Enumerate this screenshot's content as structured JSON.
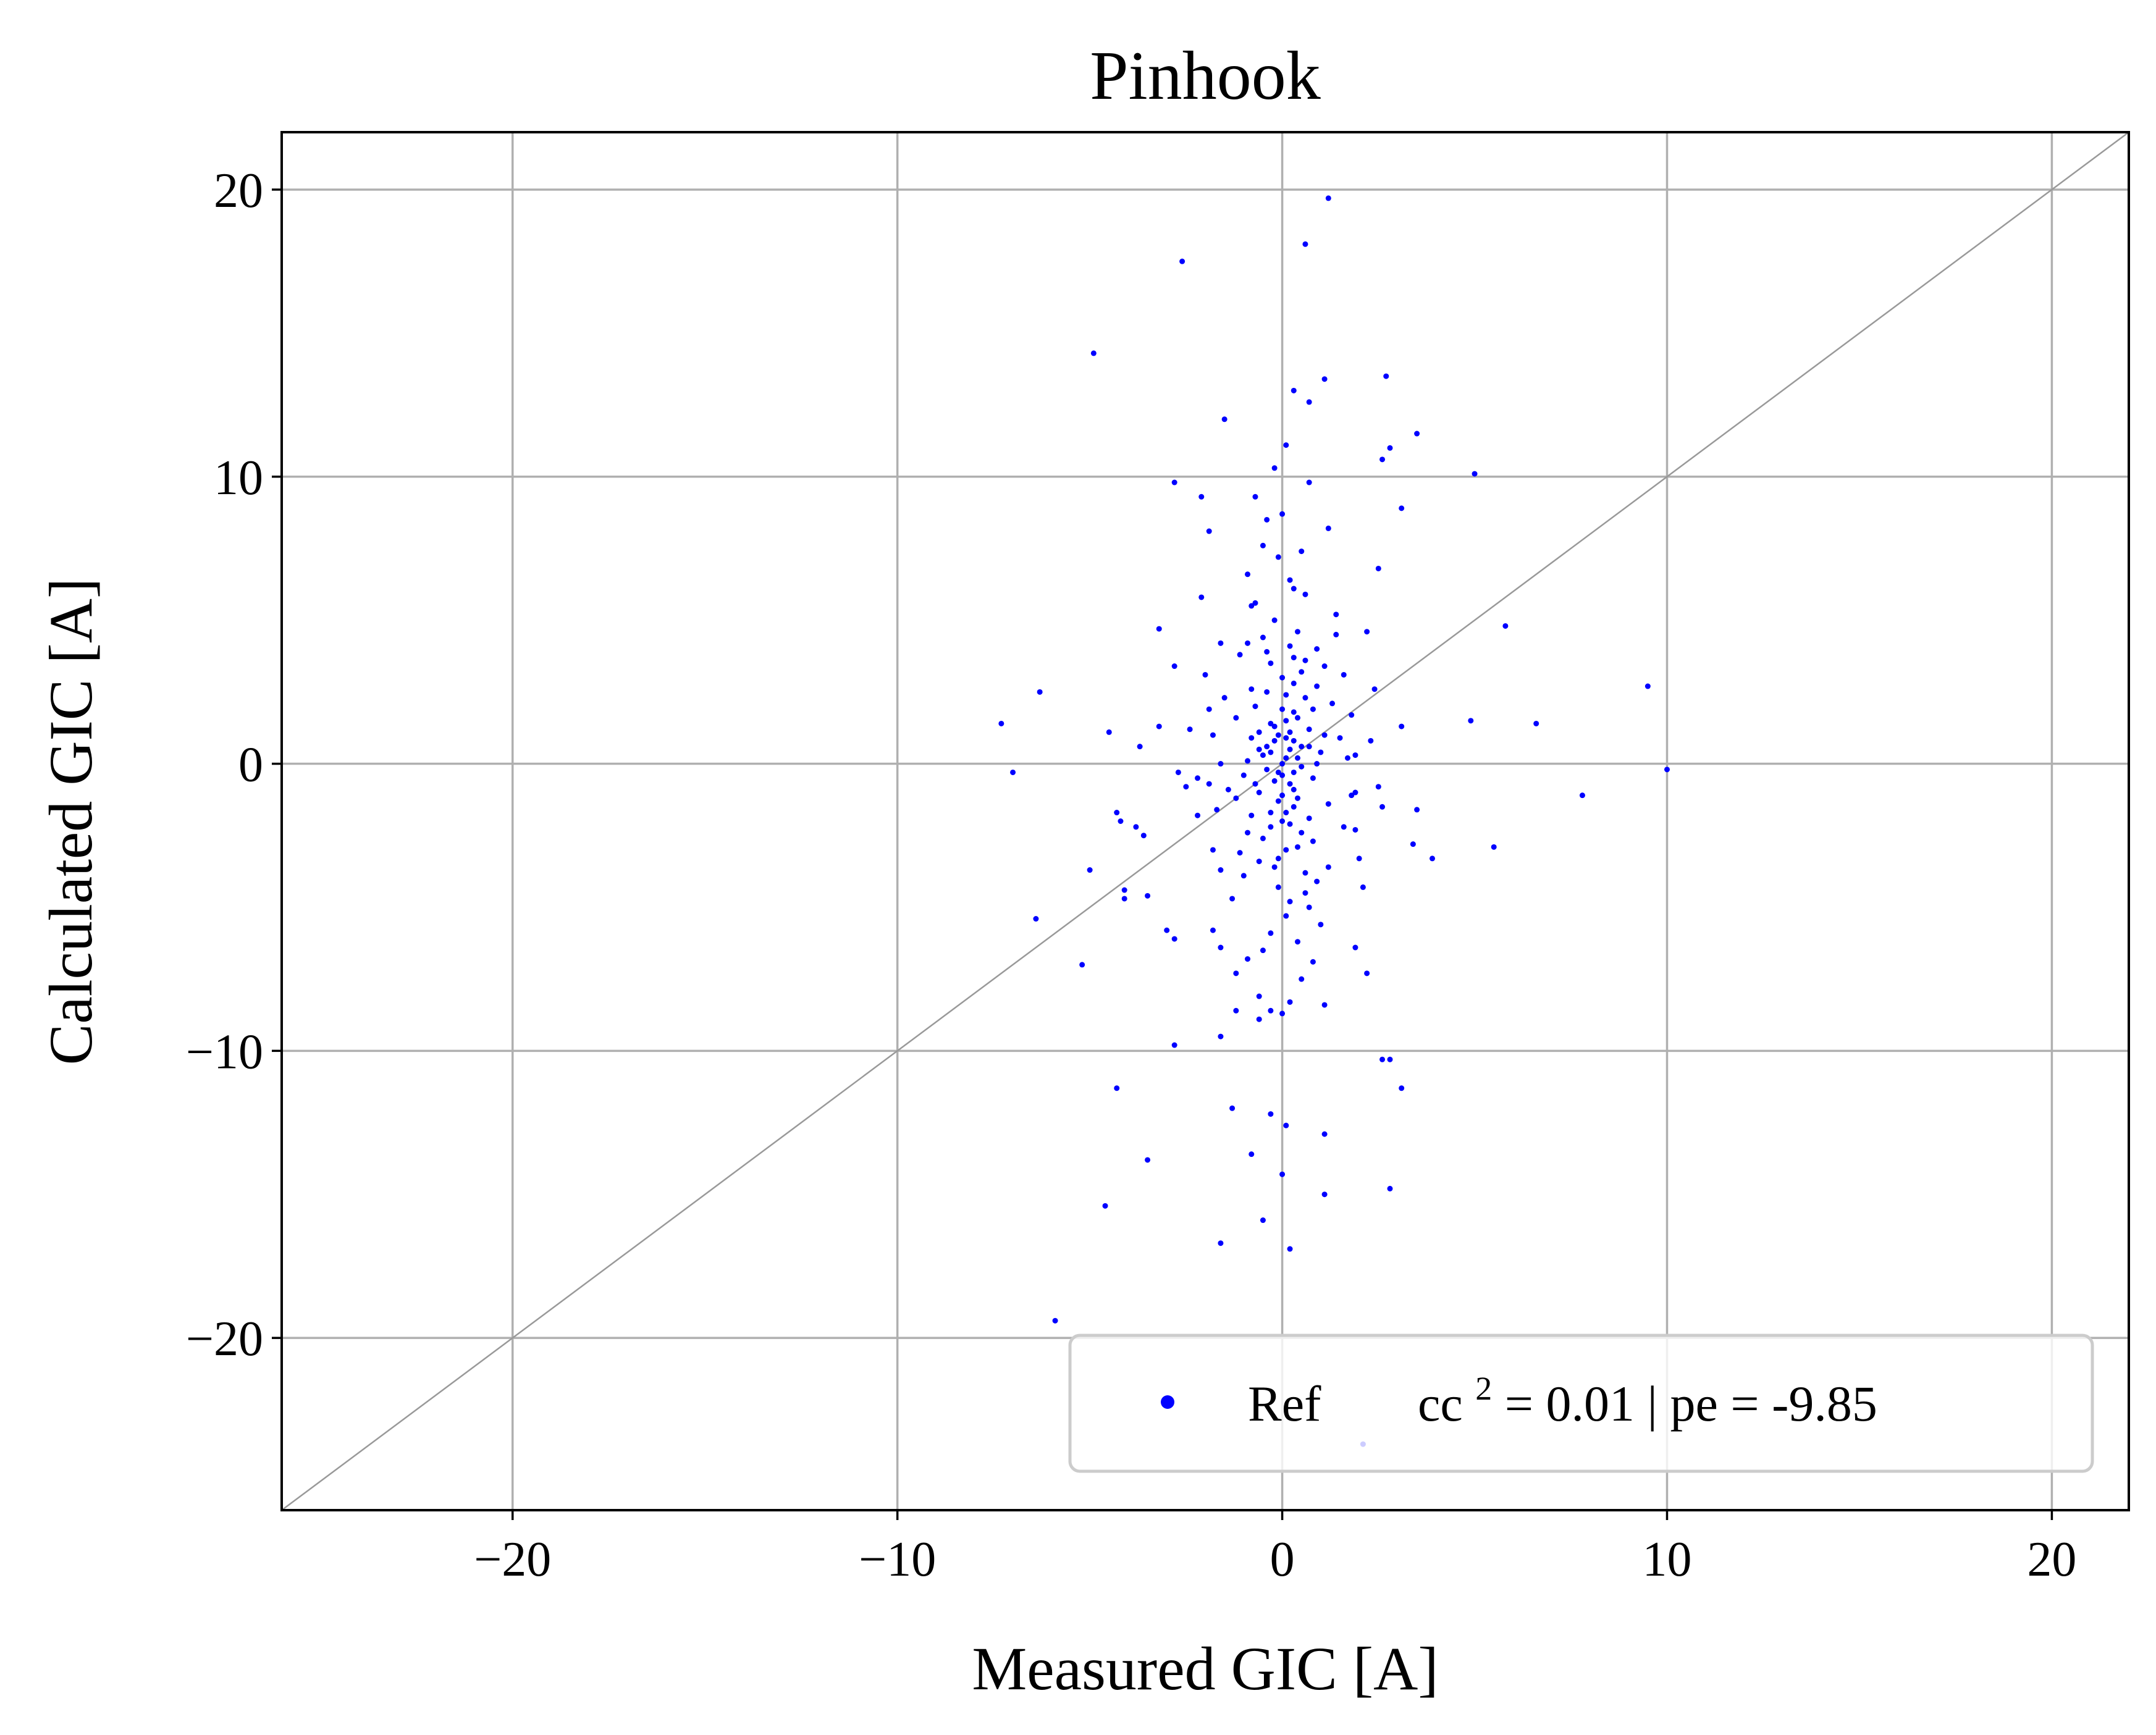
{
  "chart_data": {
    "type": "scatter",
    "title": "Pinhook",
    "xlabel": "Measured GIC [A]",
    "ylabel": "Calculated GIC [A]",
    "xlim": [
      -26,
      22
    ],
    "ylim": [
      -26,
      22
    ],
    "xticks": [
      -20,
      -10,
      0,
      10,
      20
    ],
    "yticks": [
      -20,
      -10,
      0,
      10,
      20
    ],
    "xtick_labels": [
      "−20",
      "−10",
      "0",
      "10",
      "20"
    ],
    "ytick_labels": [
      "−20",
      "−10",
      "0",
      "10",
      "20"
    ],
    "grid": true,
    "reference_line": {
      "type": "identity",
      "color": "#999999"
    },
    "legend": {
      "placement": "lower-right",
      "marker_label": "Ref",
      "stats_prefix": "cc",
      "stats_exponent": "2",
      "stats_suffix": " = 0.01 | pe = -9.85"
    },
    "series": [
      {
        "name": "Ref",
        "color": "#0000ff",
        "points": [
          [
            1.2,
            19.7
          ],
          [
            0.6,
            18.1
          ],
          [
            -2.6,
            17.5
          ],
          [
            -4.9,
            14.3
          ],
          [
            2.7,
            13.5
          ],
          [
            1.1,
            13.4
          ],
          [
            0.3,
            13.0
          ],
          [
            0.7,
            12.6
          ],
          [
            -1.5,
            12.0
          ],
          [
            3.5,
            11.5
          ],
          [
            0.1,
            11.1
          ],
          [
            2.8,
            11.0
          ],
          [
            2.6,
            10.6
          ],
          [
            -0.2,
            10.3
          ],
          [
            5.0,
            10.1
          ],
          [
            -2.8,
            9.8
          ],
          [
            0.7,
            9.8
          ],
          [
            -0.7,
            9.3
          ],
          [
            -2.1,
            9.3
          ],
          [
            3.1,
            8.9
          ],
          [
            0.0,
            8.7
          ],
          [
            -0.4,
            8.5
          ],
          [
            1.2,
            8.2
          ],
          [
            -1.9,
            8.1
          ],
          [
            -0.5,
            7.6
          ],
          [
            0.5,
            7.4
          ],
          [
            -0.1,
            7.2
          ],
          [
            2.5,
            6.8
          ],
          [
            -0.9,
            6.6
          ],
          [
            0.3,
            6.1
          ],
          [
            -2.1,
            5.8
          ],
          [
            -0.8,
            5.5
          ],
          [
            1.4,
            5.2
          ],
          [
            -3.2,
            4.7
          ],
          [
            5.8,
            4.8
          ],
          [
            2.2,
            4.6
          ],
          [
            -1.6,
            4.2
          ],
          [
            0.9,
            4.0
          ],
          [
            -2.8,
            3.4
          ],
          [
            1.6,
            3.1
          ],
          [
            -6.3,
            2.5
          ],
          [
            9.5,
            2.7
          ],
          [
            2.4,
            2.6
          ],
          [
            -4.5,
            1.1
          ],
          [
            -7.3,
            1.4
          ],
          [
            6.6,
            1.4
          ],
          [
            4.9,
            1.5
          ],
          [
            -3.2,
            1.3
          ],
          [
            3.1,
            1.3
          ],
          [
            -1.8,
            1.0
          ],
          [
            -3.7,
            0.6
          ],
          [
            1.9,
            0.3
          ],
          [
            -7.0,
            -0.3
          ],
          [
            -2.7,
            -0.3
          ],
          [
            10.0,
            -0.2
          ],
          [
            -2.5,
            -0.8
          ],
          [
            -1.9,
            -0.7
          ],
          [
            1.8,
            -1.1
          ],
          [
            7.8,
            -1.1
          ],
          [
            3.5,
            -1.6
          ],
          [
            2.6,
            -1.5
          ],
          [
            -4.3,
            -1.7
          ],
          [
            -2.2,
            -1.8
          ],
          [
            -4.2,
            -2.0
          ],
          [
            -3.8,
            -2.2
          ],
          [
            -3.6,
            -2.5
          ],
          [
            1.9,
            -2.3
          ],
          [
            5.5,
            -2.9
          ],
          [
            3.4,
            -2.8
          ],
          [
            -1.8,
            -3.0
          ],
          [
            3.9,
            -3.3
          ],
          [
            -1.6,
            -3.7
          ],
          [
            -5.0,
            -3.7
          ],
          [
            -4.1,
            -4.4
          ],
          [
            -4.1,
            -4.7
          ],
          [
            -3.5,
            -4.6
          ],
          [
            2.1,
            -4.3
          ],
          [
            -6.4,
            -5.4
          ],
          [
            -1.8,
            -5.8
          ],
          [
            -3.0,
            -5.8
          ],
          [
            -2.8,
            -6.1
          ],
          [
            1.9,
            -6.4
          ],
          [
            -1.6,
            -6.4
          ],
          [
            -5.2,
            -7.0
          ],
          [
            -0.9,
            -6.8
          ],
          [
            0.8,
            -6.9
          ],
          [
            2.2,
            -7.3
          ],
          [
            -1.2,
            -7.3
          ],
          [
            0.5,
            -7.5
          ],
          [
            -0.6,
            -8.1
          ],
          [
            0.2,
            -8.3
          ],
          [
            1.1,
            -8.4
          ],
          [
            -1.2,
            -8.6
          ],
          [
            -0.3,
            -8.6
          ],
          [
            0.0,
            -8.7
          ],
          [
            -0.6,
            -8.9
          ],
          [
            -1.6,
            -9.5
          ],
          [
            -2.8,
            -9.8
          ],
          [
            2.8,
            -10.3
          ],
          [
            2.6,
            -10.3
          ],
          [
            -4.3,
            -11.3
          ],
          [
            3.1,
            -11.3
          ],
          [
            -1.3,
            -12.0
          ],
          [
            -0.3,
            -12.2
          ],
          [
            0.1,
            -12.6
          ],
          [
            1.1,
            -12.9
          ],
          [
            -0.8,
            -13.6
          ],
          [
            -3.5,
            -13.8
          ],
          [
            0.0,
            -14.3
          ],
          [
            2.8,
            -14.8
          ],
          [
            1.1,
            -15.0
          ],
          [
            -4.6,
            -15.4
          ],
          [
            -0.5,
            -15.9
          ],
          [
            -1.6,
            -16.7
          ],
          [
            0.2,
            -16.9
          ],
          [
            -5.9,
            -19.4
          ],
          [
            2.1,
            -23.7
          ],
          [
            0.1,
            0.2
          ],
          [
            -0.1,
            -0.3
          ],
          [
            0.3,
            0.8
          ],
          [
            -0.3,
            1.4
          ],
          [
            0.4,
            -1.2
          ],
          [
            -0.4,
            0.6
          ],
          [
            0.2,
            -2.1
          ],
          [
            0.6,
            2.3
          ],
          [
            -0.6,
            -1.0
          ],
          [
            0.0,
            1.9
          ],
          [
            0.8,
            -0.5
          ],
          [
            -0.8,
            0.9
          ],
          [
            0.1,
            -3.0
          ],
          [
            0.5,
            3.2
          ],
          [
            -0.5,
            -2.6
          ],
          [
            1.0,
            0.4
          ],
          [
            -1.0,
            -0.4
          ],
          [
            0.3,
            2.8
          ],
          [
            -0.2,
            -3.6
          ],
          [
            0.7,
            1.2
          ],
          [
            -0.7,
            2.0
          ],
          [
            0.4,
            -2.9
          ],
          [
            -0.3,
            3.5
          ],
          [
            1.2,
            -1.4
          ],
          [
            -1.2,
            1.6
          ],
          [
            0.2,
            4.1
          ],
          [
            -0.1,
            -4.3
          ],
          [
            0.9,
            2.7
          ],
          [
            -0.9,
            -2.4
          ],
          [
            1.5,
            0.9
          ],
          [
            -1.4,
            -0.9
          ],
          [
            0.6,
            -3.8
          ],
          [
            -0.4,
            3.9
          ],
          [
            1.3,
            2.1
          ],
          [
            -1.1,
            -3.1
          ],
          [
            0.0,
            0.0
          ],
          [
            0.2,
            0.5
          ],
          [
            -0.2,
            -0.6
          ],
          [
            0.4,
            1.6
          ],
          [
            -0.3,
            -1.7
          ],
          [
            0.5,
            -0.1
          ],
          [
            -0.5,
            0.3
          ],
          [
            0.1,
            2.4
          ],
          [
            0.0,
            -2.0
          ],
          [
            0.7,
            -1.9
          ],
          [
            -0.6,
            1.1
          ],
          [
            0.3,
            -0.9
          ],
          [
            -0.1,
            1.0
          ],
          [
            1.1,
            3.4
          ],
          [
            -1.0,
            -3.9
          ],
          [
            0.8,
            -2.7
          ],
          [
            -0.8,
            2.6
          ],
          [
            1.6,
            -2.2
          ],
          [
            -1.5,
            2.3
          ],
          [
            0.2,
            -4.8
          ],
          [
            0.4,
            4.6
          ],
          [
            -0.5,
            4.4
          ],
          [
            0.6,
            -4.5
          ],
          [
            1.8,
            1.7
          ],
          [
            -1.7,
            -1.6
          ],
          [
            0.9,
            0.0
          ],
          [
            -0.9,
            0.1
          ],
          [
            0.3,
            -1.5
          ],
          [
            -0.2,
            1.3
          ],
          [
            0.1,
            0.9
          ],
          [
            0.5,
            0.6
          ],
          [
            -0.4,
            -0.2
          ],
          [
            0.2,
            -0.7
          ],
          [
            -0.6,
            0.5
          ],
          [
            0.0,
            3.0
          ],
          [
            0.1,
            -5.3
          ],
          [
            -0.2,
            5.0
          ],
          [
            1.4,
            4.5
          ],
          [
            -1.3,
            -4.7
          ],
          [
            2.0,
            -3.3
          ],
          [
            -2.0,
            3.1
          ],
          [
            1.0,
            -5.6
          ],
          [
            -0.7,
            5.6
          ],
          [
            0.6,
            5.9
          ],
          [
            -0.3,
            -5.9
          ],
          [
            1.7,
            0.2
          ],
          [
            -1.6,
            0.0
          ],
          [
            2.3,
            0.8
          ],
          [
            -2.2,
            -0.5
          ],
          [
            2.5,
            -0.8
          ],
          [
            -2.4,
            1.2
          ],
          [
            0.3,
            3.7
          ],
          [
            -0.1,
            -3.3
          ],
          [
            0.8,
            1.9
          ],
          [
            -0.8,
            -1.8
          ],
          [
            1.2,
            -3.6
          ],
          [
            -1.1,
            3.8
          ],
          [
            0.4,
            -6.2
          ],
          [
            0.2,
            6.4
          ],
          [
            -0.5,
            -6.5
          ],
          [
            0.7,
            -5.0
          ],
          [
            1.9,
            -1.0
          ],
          [
            -1.9,
            1.9
          ],
          [
            0.0,
            -1.1
          ],
          [
            0.1,
            1.5
          ],
          [
            -0.3,
            0.4
          ],
          [
            0.3,
            -0.3
          ],
          [
            -0.1,
            -1.3
          ],
          [
            0.2,
            1.1
          ],
          [
            0.5,
            -2.4
          ],
          [
            -0.4,
            2.5
          ],
          [
            0.9,
            -4.1
          ],
          [
            -0.9,
            4.2
          ],
          [
            1.1,
            1.0
          ],
          [
            -1.2,
            -1.2
          ],
          [
            0.6,
            3.6
          ],
          [
            -0.6,
            -3.4
          ],
          [
            0.4,
            0.2
          ],
          [
            -0.2,
            0.8
          ],
          [
            0.0,
            -0.4
          ],
          [
            0.1,
            -1.7
          ],
          [
            0.3,
            1.8
          ],
          [
            -0.3,
            -2.2
          ],
          [
            0.7,
            0.6
          ],
          [
            -0.7,
            -0.7
          ]
        ]
      }
    ]
  }
}
